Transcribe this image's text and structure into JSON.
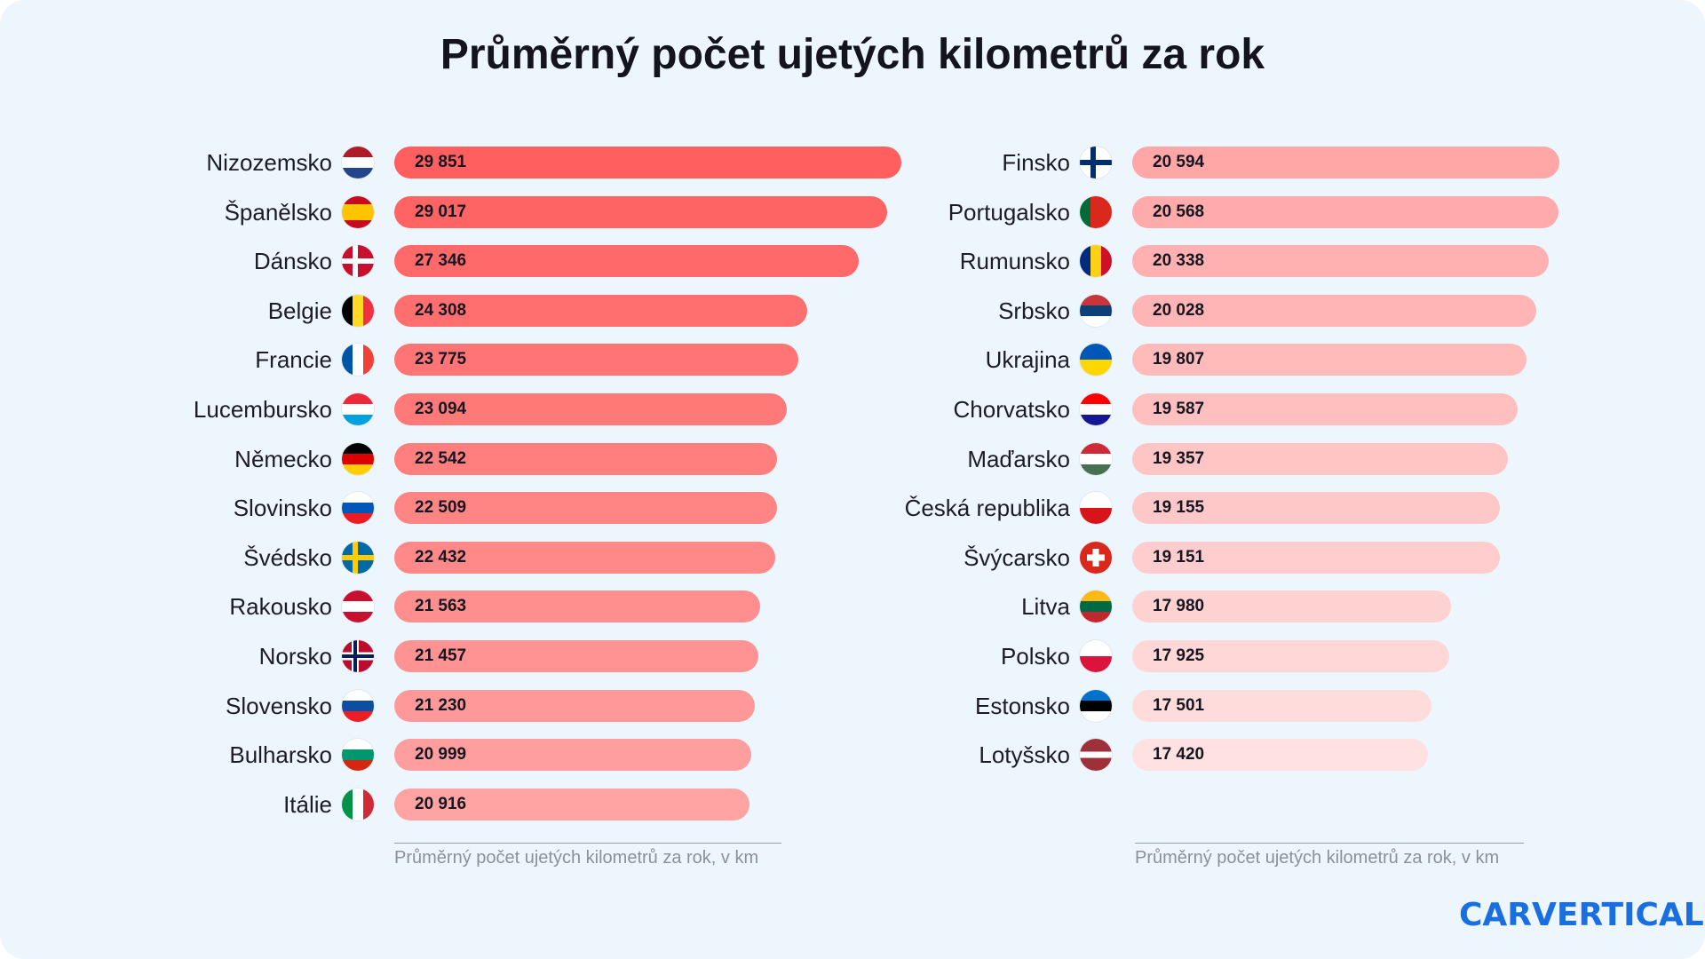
{
  "title": "Průměrný počet ujetých kilometrů za rok",
  "brand": "CARVERTICAL",
  "colors": {
    "bar_left_start": "#ff5f5f",
    "bar_left_end": "#ffa3a3",
    "bar_right_start": "#ffa6a6",
    "bar_right_end": "#ffe1e1",
    "brand": "#1a6fe0",
    "background": "#eef6fd"
  },
  "chart_data": [
    {
      "type": "bar",
      "orientation": "horizontal",
      "xlabel": "Průměrný počet ujetých kilometrů za rok, v km",
      "categories": [
        "Nizozemsko",
        "Španělsko",
        "Dánsko",
        "Belgie",
        "Francie",
        "Lucembursko",
        "Německo",
        "Slovinsko",
        "Švédsko",
        "Rakousko",
        "Norsko",
        "Slovensko",
        "Bulharsko",
        "Itálie"
      ],
      "values": [
        29851,
        29017,
        27346,
        24308,
        23775,
        23094,
        22542,
        22509,
        22432,
        21563,
        21457,
        21230,
        20999,
        20916
      ],
      "labels": [
        "29 851",
        "29 017",
        "27 346",
        "24 308",
        "23 775",
        "23 094",
        "22 542",
        "22 509",
        "22 432",
        "21 563",
        "21 457",
        "21 230",
        "20 999",
        "20 916"
      ],
      "flags": [
        {
          "dir": "h",
          "stripes": [
            "#ae1c28",
            "#ffffff",
            "#21468b"
          ]
        },
        {
          "dir": "h",
          "stripes": [
            "#c60b1e",
            "#ffc400",
            "#ffc400",
            "#c60b1e"
          ]
        },
        {
          "cross": "nordic",
          "bg": "#c8102e",
          "fg": "#ffffff"
        },
        {
          "dir": "v",
          "stripes": [
            "#000000",
            "#fdda24",
            "#ef3340"
          ]
        },
        {
          "dir": "v",
          "stripes": [
            "#0055a4",
            "#ffffff",
            "#ef4135"
          ]
        },
        {
          "dir": "h",
          "stripes": [
            "#ed2939",
            "#ffffff",
            "#00a1de"
          ]
        },
        {
          "dir": "h",
          "stripes": [
            "#000000",
            "#dd0000",
            "#ffce00"
          ]
        },
        {
          "dir": "h",
          "stripes": [
            "#ffffff",
            "#0057b8",
            "#ed1c24"
          ]
        },
        {
          "cross": "nordic",
          "bg": "#006aa7",
          "fg": "#fecc00"
        },
        {
          "dir": "h",
          "stripes": [
            "#c8102e",
            "#ffffff",
            "#c8102e"
          ]
        },
        {
          "cross": "nordic2",
          "bg": "#ba0c2f",
          "fg": "#ffffff",
          "inner": "#00205b"
        },
        {
          "dir": "h",
          "stripes": [
            "#ffffff",
            "#0b4ea2",
            "#ee1c25"
          ]
        },
        {
          "dir": "h",
          "stripes": [
            "#ffffff",
            "#00966e",
            "#d62612"
          ]
        },
        {
          "dir": "v",
          "stripes": [
            "#009246",
            "#ffffff",
            "#ce2b37"
          ]
        }
      ]
    },
    {
      "type": "bar",
      "orientation": "horizontal",
      "xlabel": "Průměrný počet ujetých kilometrů za rok, v km",
      "categories": [
        "Finsko",
        "Portugalsko",
        "Rumunsko",
        "Srbsko",
        "Ukrajina",
        "Chorvatsko",
        "Maďarsko",
        "Česká republika",
        "Švýcarsko",
        "Litva",
        "Polsko",
        "Estonsko",
        "Lotyšsko"
      ],
      "values": [
        20594,
        20568,
        20338,
        20028,
        19807,
        19587,
        19357,
        19155,
        19151,
        17980,
        17925,
        17501,
        17420
      ],
      "labels": [
        "20 594",
        "20 568",
        "20 338",
        "20 028",
        "19 807",
        "19 587",
        "19 357",
        "19 155",
        "19 151",
        "17 980",
        "17 925",
        "17 501",
        "17 420"
      ],
      "flags": [
        {
          "cross": "nordic",
          "bg": "#ffffff",
          "fg": "#002f6c"
        },
        {
          "dir": "v",
          "stripes": [
            "#046a38",
            "#da291c",
            "#da291c"
          ]
        },
        {
          "dir": "v",
          "stripes": [
            "#002b7f",
            "#fcd116",
            "#ce1126"
          ]
        },
        {
          "dir": "h",
          "stripes": [
            "#c6363c",
            "#0c4076",
            "#ffffff"
          ]
        },
        {
          "dir": "h",
          "stripes": [
            "#0057b7",
            "#ffd700"
          ]
        },
        {
          "dir": "h",
          "stripes": [
            "#ff0000",
            "#ffffff",
            "#171796"
          ]
        },
        {
          "dir": "h",
          "stripes": [
            "#ce2939",
            "#ffffff",
            "#477050"
          ]
        },
        {
          "cz": true
        },
        {
          "cross": "swiss",
          "bg": "#da291c",
          "fg": "#ffffff"
        },
        {
          "dir": "h",
          "stripes": [
            "#fdb913",
            "#006a44",
            "#c1272d"
          ]
        },
        {
          "dir": "h",
          "stripes": [
            "#ffffff",
            "#dc143c"
          ]
        },
        {
          "dir": "h",
          "stripes": [
            "#0072ce",
            "#000000",
            "#ffffff"
          ]
        },
        {
          "dir": "h",
          "stripes": [
            "#9e3039",
            "#9e3039",
            "#ffffff",
            "#9e3039",
            "#9e3039"
          ]
        }
      ]
    }
  ]
}
